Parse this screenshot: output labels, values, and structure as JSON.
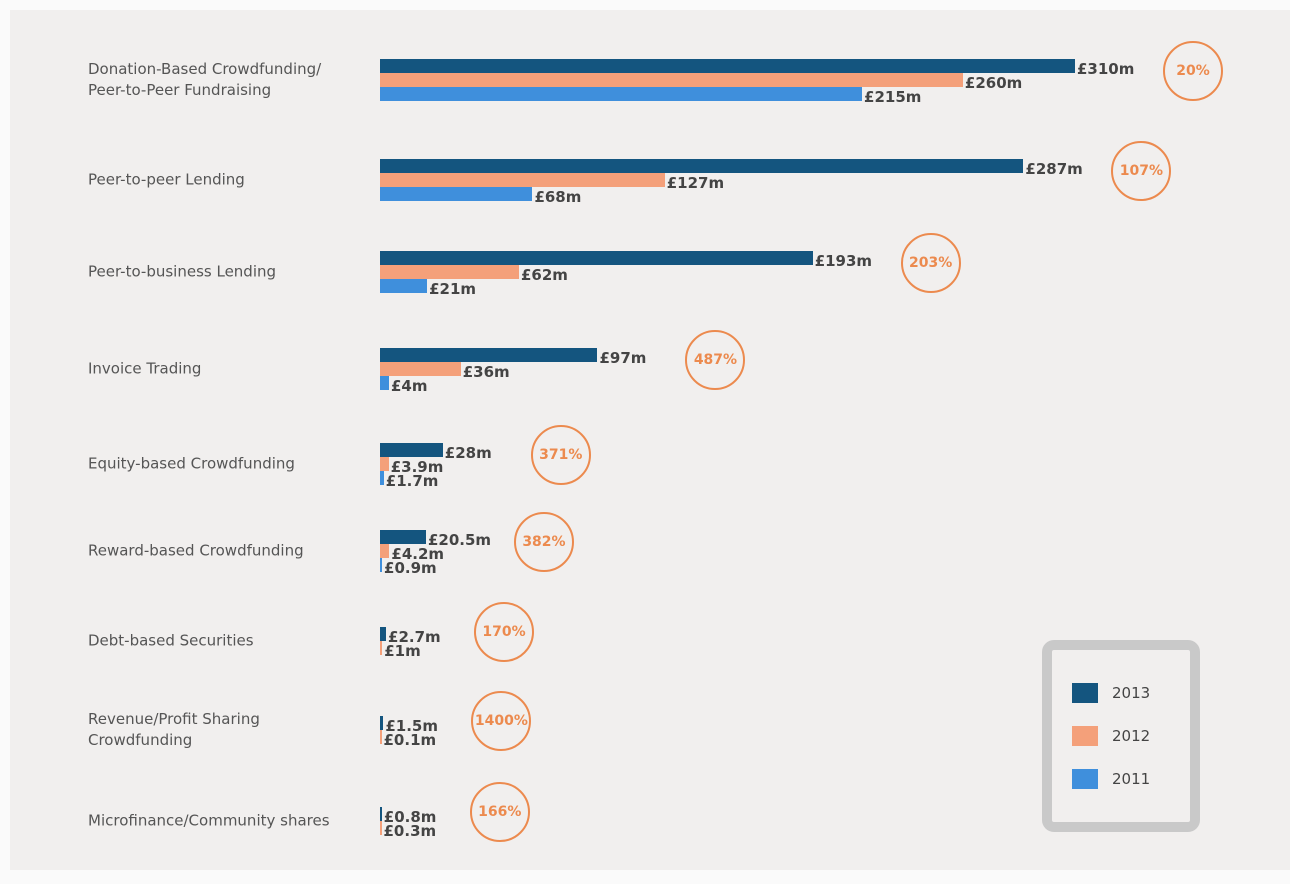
{
  "chart_data": {
    "type": "hbar",
    "categories": [
      "Donation-Based Crowdfunding/\nPeer-to-Peer Fundraising",
      "Peer-to-peer Lending",
      "Peer-to-business Lending",
      "Invoice Trading",
      "Equity-based Crowdfunding",
      "Reward-based Crowdfunding",
      "Debt-based Securities",
      "Revenue/Profit Sharing\nCrowdfunding",
      "Microfinance/Community shares"
    ],
    "series": [
      {
        "name": "2013",
        "color": "#14557f",
        "values": [
          310,
          287,
          193,
          97,
          28,
          20.5,
          2.7,
          1.5,
          0.8
        ],
        "value_labels": [
          "£310m",
          "£287m",
          "£193m",
          "£97m",
          "£28m",
          "£20.5m",
          "£2.7m",
          "£1.5m",
          "£0.8m"
        ]
      },
      {
        "name": "2012",
        "color": "#f4a07a",
        "values": [
          260,
          127,
          62,
          36,
          3.9,
          4.2,
          1,
          0.1,
          0.3
        ],
        "value_labels": [
          "£260m",
          "£127m",
          "£62m",
          "£36m",
          "£3.9m",
          "£4.2m",
          "£1m",
          "£0.1m",
          "£0.3m"
        ]
      },
      {
        "name": "2011",
        "color": "#3f8fdc",
        "values": [
          215,
          68,
          21,
          4,
          1.7,
          0.9,
          null,
          null,
          null
        ],
        "value_labels": [
          "£215m",
          "£68m",
          "£21m",
          "£4m",
          "£1.7m",
          "£0.9m",
          null,
          null,
          null
        ]
      }
    ],
    "growth": {
      "values": [
        20,
        107,
        203,
        487,
        371,
        382,
        170,
        1400,
        166
      ],
      "value_labels": [
        "20%",
        "107%",
        "203%",
        "487%",
        "371%",
        "382%",
        "170%",
        "1400%",
        "166%"
      ],
      "color": "#ec8a4e"
    },
    "xlim": [
      0,
      310
    ]
  }
}
